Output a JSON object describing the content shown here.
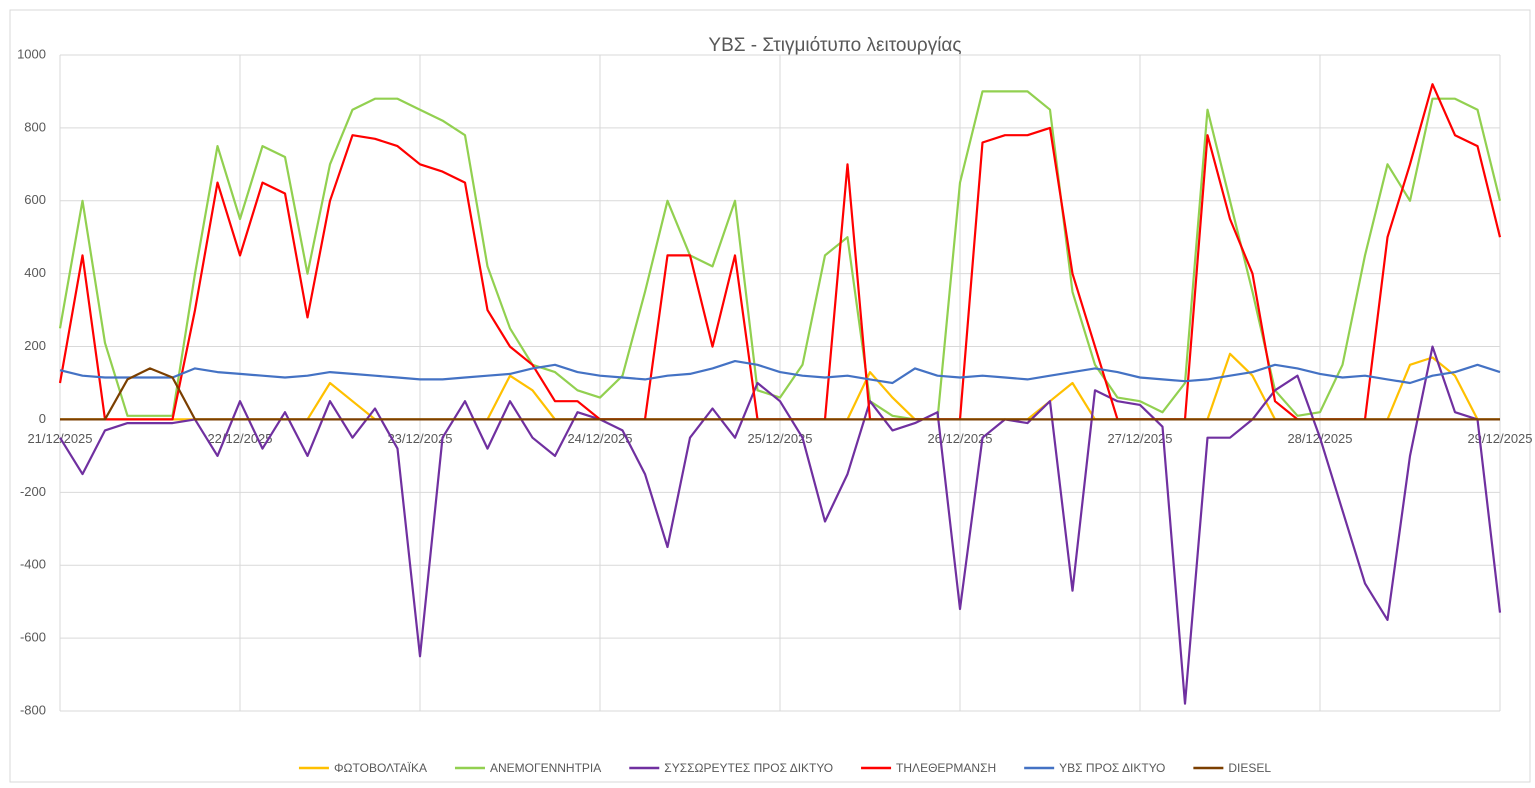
{
  "chart_data": {
    "type": "line",
    "title": "ΥΒΣ - Στιγμιότυπο λειτουργίας",
    "x": [
      0,
      3,
      6,
      9,
      12,
      15,
      18,
      21,
      24,
      27,
      30,
      33,
      36,
      39,
      42,
      45,
      48,
      51,
      54,
      57,
      60,
      63,
      66,
      69,
      72,
      75,
      78,
      81,
      84,
      87,
      90,
      93,
      96,
      99,
      102,
      105,
      108,
      111,
      114,
      117,
      120,
      123,
      126,
      129,
      132,
      135,
      138,
      141,
      144,
      147,
      150,
      153,
      156,
      159,
      162,
      165,
      168,
      171,
      174,
      177,
      180,
      183,
      186,
      189,
      192
    ],
    "xlim": [
      0,
      192
    ],
    "xticks": [
      {
        "value": 0,
        "label": "21/12/2025"
      },
      {
        "value": 24,
        "label": "22/12/2025"
      },
      {
        "value": 48,
        "label": "23/12/2025"
      },
      {
        "value": 72,
        "label": "24/12/2025"
      },
      {
        "value": 96,
        "label": "25/12/2025"
      },
      {
        "value": 120,
        "label": "26/12/2025"
      },
      {
        "value": 144,
        "label": "27/12/2025"
      },
      {
        "value": 168,
        "label": "28/12/2025"
      },
      {
        "value": 192,
        "label": "29/12/2025"
      }
    ],
    "ylim": [
      -800,
      1000
    ],
    "yticks": [
      -800,
      -600,
      -400,
      -200,
      0,
      200,
      400,
      600,
      800,
      1000
    ],
    "grid": true,
    "legend": "bottom",
    "series": [
      {
        "name": "ΦΩΤΟΒΟΛΤΑΪΚΑ",
        "color": "#ffc000",
        "values": [
          0,
          0,
          0,
          0,
          0,
          0,
          0,
          0,
          0,
          0,
          0,
          0,
          100,
          50,
          0,
          0,
          0,
          0,
          0,
          0,
          120,
          80,
          0,
          0,
          0,
          0,
          0,
          0,
          0,
          0,
          0,
          0,
          0,
          0,
          0,
          0,
          130,
          60,
          0,
          0,
          0,
          0,
          0,
          0,
          50,
          100,
          0,
          0,
          0,
          0,
          0,
          0,
          180,
          120,
          0,
          0,
          0,
          0,
          0,
          0,
          150,
          170,
          120,
          0,
          0
        ]
      },
      {
        "name": "ΑΝΕΜΟΓΕΝΝΗΤΡΙΑ",
        "color": "#92d050",
        "values": [
          250,
          600,
          210,
          10,
          10,
          10,
          400,
          750,
          550,
          750,
          720,
          400,
          700,
          850,
          880,
          880,
          850,
          820,
          780,
          420,
          250,
          150,
          130,
          80,
          60,
          120,
          350,
          600,
          450,
          420,
          600,
          80,
          60,
          150,
          450,
          500,
          50,
          10,
          0,
          0,
          650,
          900,
          900,
          900,
          850,
          350,
          150,
          60,
          50,
          20,
          100,
          850,
          600,
          350,
          80,
          10,
          20,
          150,
          450,
          700,
          600,
          880,
          880,
          850,
          600
        ]
      },
      {
        "name": "ΣΥΣΣΩΡΕΥΤΕΣ ΠΡΟΣ ΔΙΚΤΥΟ",
        "color": "#7030a0",
        "values": [
          -50,
          -150,
          -30,
          -10,
          -10,
          -10,
          0,
          -100,
          50,
          -80,
          20,
          -100,
          50,
          -50,
          30,
          -80,
          -650,
          -50,
          50,
          -80,
          50,
          -50,
          -100,
          20,
          0,
          -30,
          -150,
          -350,
          -50,
          30,
          -50,
          100,
          50,
          -50,
          -280,
          -150,
          50,
          -30,
          -10,
          20,
          -520,
          -50,
          0,
          -10,
          50,
          -470,
          80,
          50,
          40,
          -20,
          -780,
          -50,
          -50,
          0,
          80,
          120,
          -50,
          -250,
          -450,
          -550,
          -100,
          200,
          20,
          0,
          -530
        ]
      },
      {
        "name": "ΤΗΛΕΘΕΡΜΑΝΣΗ",
        "color": "#ff0000",
        "values": [
          100,
          450,
          0,
          0,
          0,
          0,
          300,
          650,
          450,
          650,
          620,
          280,
          600,
          780,
          770,
          750,
          700,
          680,
          650,
          300,
          200,
          150,
          50,
          50,
          0,
          0,
          0,
          450,
          450,
          200,
          450,
          0,
          0,
          0,
          0,
          700,
          0,
          0,
          0,
          0,
          0,
          760,
          780,
          780,
          800,
          400,
          200,
          0,
          0,
          0,
          0,
          780,
          550,
          400,
          50,
          0,
          0,
          0,
          0,
          500,
          700,
          920,
          780,
          750,
          500
        ]
      },
      {
        "name": "ΥΒΣ ΠΡΟΣ ΔΙΚΤΥΟ",
        "color": "#4472c4",
        "values": [
          135,
          120,
          115,
          115,
          115,
          115,
          140,
          130,
          125,
          120,
          115,
          120,
          130,
          125,
          120,
          115,
          110,
          110,
          115,
          120,
          125,
          140,
          150,
          130,
          120,
          115,
          110,
          120,
          125,
          140,
          160,
          150,
          130,
          120,
          115,
          120,
          110,
          100,
          140,
          120,
          115,
          120,
          115,
          110,
          120,
          130,
          140,
          130,
          115,
          110,
          105,
          110,
          120,
          130,
          150,
          140,
          125,
          115,
          120,
          110,
          100,
          120,
          130,
          150,
          130
        ]
      },
      {
        "name": "DIESEL",
        "color": "#7b3f00",
        "values": [
          0,
          0,
          0,
          110,
          140,
          115,
          0,
          0,
          0,
          0,
          0,
          0,
          0,
          0,
          0,
          0,
          0,
          0,
          0,
          0,
          0,
          0,
          0,
          0,
          0,
          0,
          0,
          0,
          0,
          0,
          0,
          0,
          0,
          0,
          0,
          0,
          0,
          0,
          0,
          0,
          0,
          0,
          0,
          0,
          0,
          0,
          0,
          0,
          0,
          0,
          0,
          0,
          0,
          0,
          0,
          0,
          0,
          0,
          0,
          0,
          0,
          0,
          0,
          0,
          0
        ]
      }
    ]
  }
}
